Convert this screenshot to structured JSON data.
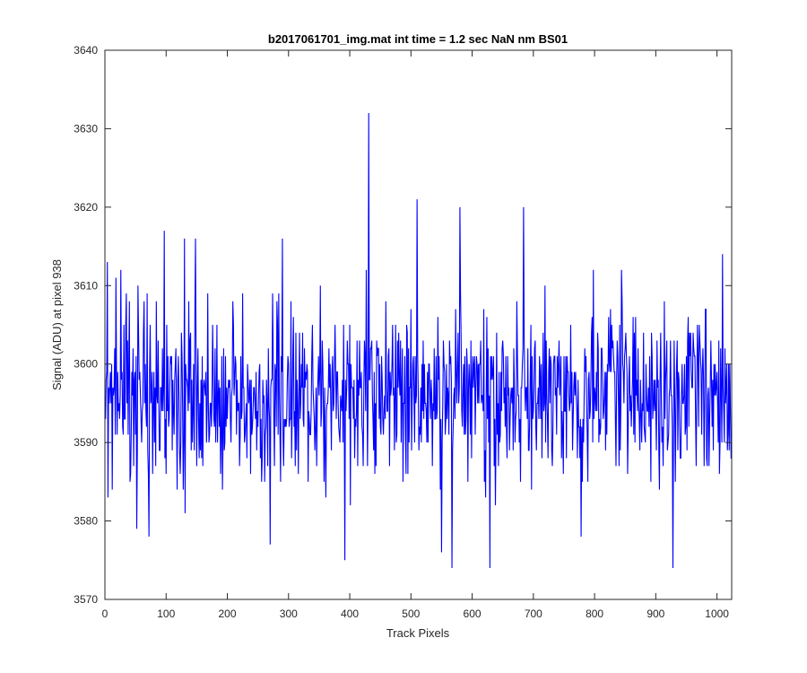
{
  "chart_data": {
    "type": "line",
    "title": "b2017061701_img.mat int time = 1.2 sec  NaN nm BS01",
    "xlabel": "Track Pixels",
    "ylabel": "Signal (ADU) at pixel 938",
    "xlim": [
      0,
      1024
    ],
    "ylim": [
      3570,
      3640
    ],
    "xticks": [
      "0",
      "100",
      "200",
      "300",
      "400",
      "500",
      "600",
      "700",
      "800",
      "900",
      "1000"
    ],
    "yticks": [
      "3570",
      "3580",
      "3590",
      "3600",
      "3610",
      "3620",
      "3630",
      "3640"
    ],
    "grid": false,
    "series": [
      {
        "color": "#0000ff",
        "noise": {
          "points": 1024,
          "mean": 3596,
          "std": 5.5,
          "seed": 938
        },
        "highlights": [
          {
            "x": 1,
            "y": 3593
          },
          {
            "x": 4,
            "y": 3613
          },
          {
            "x": 12,
            "y": 3584
          },
          {
            "x": 26,
            "y": 3612
          },
          {
            "x": 52,
            "y": 3579
          },
          {
            "x": 72,
            "y": 3578
          },
          {
            "x": 97,
            "y": 3617
          },
          {
            "x": 130,
            "y": 3616
          },
          {
            "x": 148,
            "y": 3616
          },
          {
            "x": 270,
            "y": 3577
          },
          {
            "x": 290,
            "y": 3616
          },
          {
            "x": 392,
            "y": 3575
          },
          {
            "x": 431,
            "y": 3632
          },
          {
            "x": 510,
            "y": 3621
          },
          {
            "x": 550,
            "y": 3576
          },
          {
            "x": 567,
            "y": 3574
          },
          {
            "x": 580,
            "y": 3620
          },
          {
            "x": 629,
            "y": 3574
          },
          {
            "x": 684,
            "y": 3620
          },
          {
            "x": 778,
            "y": 3578
          },
          {
            "x": 928,
            "y": 3574
          },
          {
            "x": 1009,
            "y": 3614
          },
          {
            "x": 1024,
            "y": 3588
          }
        ]
      }
    ]
  }
}
